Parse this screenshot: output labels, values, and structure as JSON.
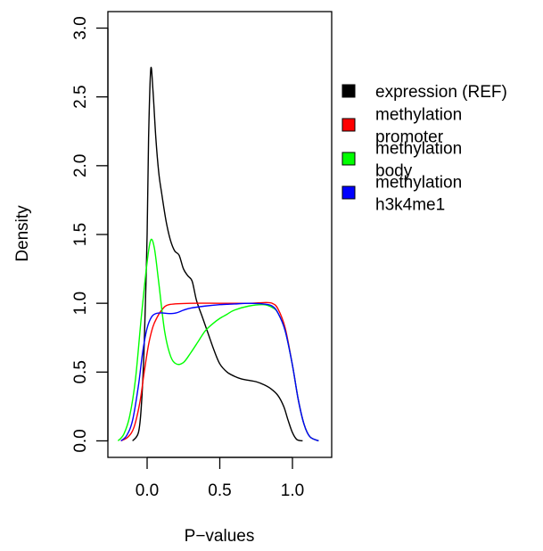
{
  "chart_data": {
    "type": "line",
    "title": "",
    "xlabel": "P−values",
    "ylabel": "Density",
    "xlim": [
      -0.27,
      1.27
    ],
    "ylim": [
      -0.12,
      3.12
    ],
    "x_ticks": [
      {
        "value": 0.0,
        "label": "0.0"
      },
      {
        "value": 0.5,
        "label": "0.5"
      },
      {
        "value": 1.0,
        "label": "1.0"
      }
    ],
    "y_ticks": [
      {
        "value": 0.0,
        "label": "0.0"
      },
      {
        "value": 0.5,
        "label": "0.5"
      },
      {
        "value": 1.0,
        "label": "1.0"
      },
      {
        "value": 1.5,
        "label": "1.5"
      },
      {
        "value": 2.0,
        "label": "2.0"
      },
      {
        "value": 2.5,
        "label": "2.5"
      },
      {
        "value": 3.0,
        "label": "3.0"
      }
    ],
    "grid": false,
    "legend_position": "right",
    "series": [
      {
        "name": "expression (REF)",
        "legend_lines": [
          "expression (REF)"
        ],
        "color": "#000000",
        "points": [
          [
            -0.1,
            0.0
          ],
          [
            -0.06,
            0.06
          ],
          [
            -0.04,
            0.25
          ],
          [
            -0.02,
            0.7
          ],
          [
            0.0,
            1.5
          ],
          [
            0.01,
            2.2
          ],
          [
            0.025,
            2.7
          ],
          [
            0.04,
            2.55
          ],
          [
            0.06,
            2.2
          ],
          [
            0.08,
            1.95
          ],
          [
            0.1,
            1.8
          ],
          [
            0.13,
            1.6
          ],
          [
            0.16,
            1.46
          ],
          [
            0.19,
            1.38
          ],
          [
            0.22,
            1.35
          ],
          [
            0.25,
            1.25
          ],
          [
            0.28,
            1.2
          ],
          [
            0.31,
            1.16
          ],
          [
            0.34,
            1.02
          ],
          [
            0.38,
            0.9
          ],
          [
            0.42,
            0.78
          ],
          [
            0.46,
            0.66
          ],
          [
            0.5,
            0.56
          ],
          [
            0.55,
            0.5
          ],
          [
            0.6,
            0.47
          ],
          [
            0.65,
            0.45
          ],
          [
            0.7,
            0.44
          ],
          [
            0.75,
            0.43
          ],
          [
            0.8,
            0.41
          ],
          [
            0.85,
            0.38
          ],
          [
            0.9,
            0.33
          ],
          [
            0.94,
            0.25
          ],
          [
            0.97,
            0.15
          ],
          [
            1.0,
            0.06
          ],
          [
            1.03,
            0.01
          ],
          [
            1.07,
            0.0
          ]
        ]
      },
      {
        "name": "methylation promoter",
        "legend_lines": [
          "methylation",
          "promoter"
        ],
        "color": "#ff0000",
        "points": [
          [
            -0.18,
            0.0
          ],
          [
            -0.13,
            0.03
          ],
          [
            -0.09,
            0.1
          ],
          [
            -0.05,
            0.28
          ],
          [
            -0.02,
            0.5
          ],
          [
            0.01,
            0.7
          ],
          [
            0.04,
            0.83
          ],
          [
            0.07,
            0.9
          ],
          [
            0.1,
            0.95
          ],
          [
            0.15,
            0.99
          ],
          [
            0.3,
            1.0
          ],
          [
            0.5,
            1.0
          ],
          [
            0.7,
            1.0
          ],
          [
            0.8,
            1.005
          ],
          [
            0.86,
            1.0
          ],
          [
            0.9,
            0.96
          ],
          [
            0.95,
            0.82
          ],
          [
            1.0,
            0.55
          ],
          [
            1.04,
            0.3
          ],
          [
            1.08,
            0.12
          ],
          [
            1.12,
            0.03
          ],
          [
            1.18,
            0.0
          ]
        ]
      },
      {
        "name": "methylation body",
        "legend_lines": [
          "methylation",
          "body"
        ],
        "color": "#00ff00",
        "points": [
          [
            -0.2,
            0.0
          ],
          [
            -0.16,
            0.05
          ],
          [
            -0.12,
            0.18
          ],
          [
            -0.08,
            0.45
          ],
          [
            -0.04,
            0.9
          ],
          [
            0.0,
            1.3
          ],
          [
            0.025,
            1.46
          ],
          [
            0.05,
            1.4
          ],
          [
            0.08,
            1.15
          ],
          [
            0.12,
            0.8
          ],
          [
            0.16,
            0.62
          ],
          [
            0.2,
            0.56
          ],
          [
            0.25,
            0.57
          ],
          [
            0.3,
            0.64
          ],
          [
            0.35,
            0.72
          ],
          [
            0.4,
            0.8
          ],
          [
            0.45,
            0.85
          ],
          [
            0.5,
            0.89
          ],
          [
            0.55,
            0.92
          ],
          [
            0.6,
            0.95
          ],
          [
            0.7,
            0.98
          ],
          [
            0.8,
            0.99
          ],
          [
            0.86,
            0.97
          ],
          [
            0.9,
            0.93
          ],
          [
            0.95,
            0.8
          ],
          [
            1.0,
            0.55
          ],
          [
            1.04,
            0.3
          ],
          [
            1.08,
            0.12
          ],
          [
            1.12,
            0.03
          ],
          [
            1.18,
            0.0
          ]
        ]
      },
      {
        "name": "methylation h3k4me1",
        "legend_lines": [
          "methylation",
          "h3k4me1"
        ],
        "color": "#0000ff",
        "points": [
          [
            -0.18,
            0.0
          ],
          [
            -0.14,
            0.04
          ],
          [
            -0.1,
            0.15
          ],
          [
            -0.06,
            0.4
          ],
          [
            -0.03,
            0.65
          ],
          [
            0.0,
            0.82
          ],
          [
            0.03,
            0.9
          ],
          [
            0.06,
            0.925
          ],
          [
            0.1,
            0.93
          ],
          [
            0.15,
            0.925
          ],
          [
            0.2,
            0.93
          ],
          [
            0.25,
            0.95
          ],
          [
            0.3,
            0.965
          ],
          [
            0.4,
            0.98
          ],
          [
            0.5,
            0.99
          ],
          [
            0.6,
            0.995
          ],
          [
            0.7,
            1.0
          ],
          [
            0.8,
            0.995
          ],
          [
            0.86,
            0.98
          ],
          [
            0.9,
            0.93
          ],
          [
            0.95,
            0.8
          ],
          [
            1.0,
            0.55
          ],
          [
            1.04,
            0.3
          ],
          [
            1.08,
            0.12
          ],
          [
            1.12,
            0.03
          ],
          [
            1.18,
            0.0
          ]
        ]
      }
    ]
  }
}
